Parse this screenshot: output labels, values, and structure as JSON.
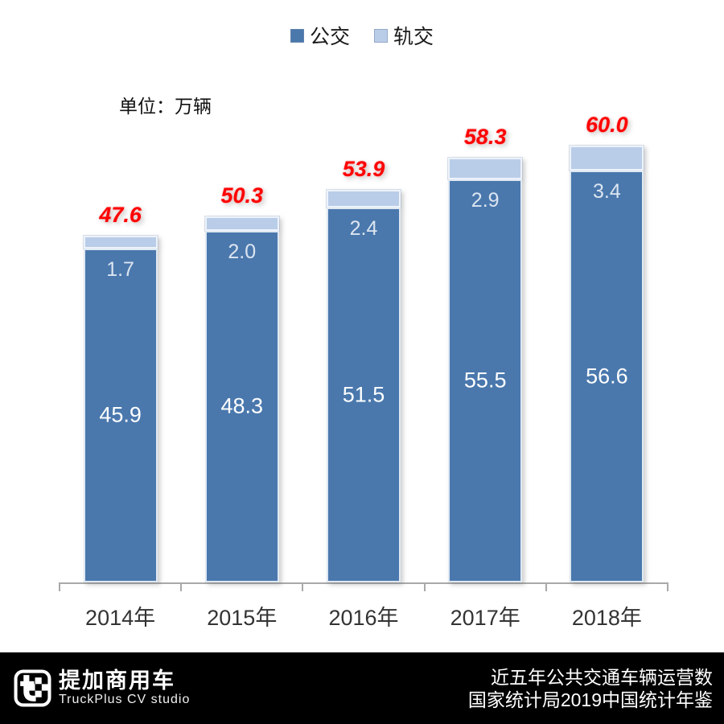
{
  "legend": {
    "items": [
      {
        "label": "公交",
        "color": "#4a78ad"
      },
      {
        "label": "轨交",
        "color": "#b9cde8"
      }
    ]
  },
  "unit_label": "单位：万辆",
  "chart_data": {
    "type": "bar",
    "stacked": true,
    "grid": false,
    "legend_position": "top-center",
    "unit": "万辆",
    "categories": [
      "2014年",
      "2015年",
      "2016年",
      "2017年",
      "2018年"
    ],
    "series": [
      {
        "name": "公交",
        "color": "#4a78ad",
        "values": [
          45.9,
          48.3,
          51.5,
          55.5,
          56.6
        ]
      },
      {
        "name": "轨交",
        "color": "#b9cde8",
        "values": [
          1.7,
          2.0,
          2.4,
          2.9,
          3.4
        ]
      }
    ],
    "totals": [
      47.6,
      50.3,
      53.9,
      58.3,
      60.0
    ],
    "total_label_color": "#ff0000",
    "ylim": [
      0,
      62
    ]
  },
  "footer": {
    "brand_cn": "提加商用车",
    "brand_en": "TruckPlus CV studio",
    "source_line1": "近五年公共交通车辆运营数",
    "source_line2": "国家统计局2019中国统计年鉴"
  }
}
